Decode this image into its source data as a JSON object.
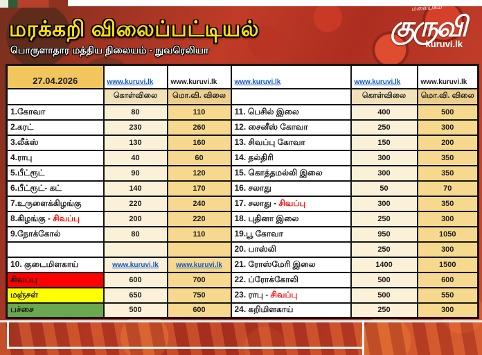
{
  "header": {
    "title": "மரக்கறி விலைப்பட்டியல்",
    "subtitle": "பொருளாதார மத்திய நிலையம் - நுவரெலியா",
    "logo": {
      "tagline": "மலையகம்",
      "name": "குருவி",
      "site": "kuruvi.lk"
    }
  },
  "colors": {
    "title_yellow": "#ffe100",
    "link_blue": "#0f56c8",
    "red_accent": "#ff0000",
    "date_cell_gold": "#f2c65c",
    "buy_column": "#fbf1d9",
    "wholesale_column": "#f6d98e",
    "red_row": "#fe0000",
    "yellow_row": "#ffff00",
    "green_row": "#69a84f",
    "background_red": "#b5311f"
  },
  "table": {
    "date": "27.04.2026",
    "links": [
      {
        "label": "www.kuruvi.lk",
        "style": "blue"
      },
      {
        "label": "www.kuruvi.lk",
        "style": "plain"
      },
      {
        "label": "www.kuruvi.lk",
        "style": "blue"
      },
      {
        "label": "www.kuruvi.lk",
        "style": "blue"
      },
      {
        "label": "www.kuruvi.lk",
        "style": "plain"
      }
    ],
    "col_headers": {
      "buy": "கொள்விலை",
      "wholesale": "மொ.வி. விலை"
    },
    "left_rows": [
      {
        "name": "1.கோவா",
        "buy": "80",
        "sale": "110"
      },
      {
        "name": "2.கரட்",
        "buy": "230",
        "sale": "260"
      },
      {
        "name": "3.லீக்ஸ்",
        "buy": "130",
        "sale": "160"
      },
      {
        "name": "4.ராபு",
        "buy": "40",
        "sale": "60"
      },
      {
        "name": "5.பீட்ரூட்",
        "buy": "90",
        "sale": "120"
      },
      {
        "name": "6.பீட்ரூட்- கட்",
        "buy": "140",
        "sale": "170"
      },
      {
        "name": "7.உருளைக்கிழங்கு",
        "buy": "220",
        "sale": "240"
      },
      {
        "name": "8.கிழங்கு - ",
        "name_red": "சிவப்பு",
        "buy": "200",
        "sale": "220"
      },
      {
        "name": "9.நோக்கோல்",
        "buy": "80",
        "sale": "110"
      },
      {
        "name": "",
        "buy": "",
        "sale": ""
      },
      {
        "name": "10. குடைமிளகாய்",
        "buy": "www.kuruvi.lk",
        "sale": "www.kuruvi.lk",
        "links": true
      },
      {
        "name": "சிவப்பு",
        "bg": "#fe0000",
        "buy": "600",
        "sale": "700"
      },
      {
        "name": "மஞ்சள்",
        "bg": "#ffff00",
        "buy": "650",
        "sale": "750"
      },
      {
        "name": "பச்சை",
        "bg": "#69a84f",
        "buy": "500",
        "sale": "600"
      }
    ],
    "right_rows": [
      {
        "name": "11. பெசில் இலை",
        "buy": "400",
        "sale": "500"
      },
      {
        "name": "12. சைனீஸ் கோவா",
        "buy": "250",
        "sale": "300"
      },
      {
        "name": "13. சிவப்பு கோவா",
        "buy": "150",
        "sale": "200"
      },
      {
        "name": "14. தல்திரி",
        "buy": "300",
        "sale": "350"
      },
      {
        "name": "15. கொத்தமல்லி இலை",
        "buy": "300",
        "sale": "350"
      },
      {
        "name": "16. சலாது",
        "buy": "50",
        "sale": "70"
      },
      {
        "name": "17. சலாது - ",
        "name_red": "சிவப்பு",
        "buy": "300",
        "sale": "350"
      },
      {
        "name": "18. புதினா இலை",
        "buy": "250",
        "sale": "300"
      },
      {
        "name": "19.பூ கோவா",
        "buy": "950",
        "sale": "1050"
      },
      {
        "name": "20. பாஸ்லி",
        "buy": "250",
        "sale": "300"
      },
      {
        "name": "21. ரோஸ்மேரி இலை",
        "buy": "1400",
        "sale": "1500"
      },
      {
        "name": "22. ப்ரோக்கோலி",
        "buy": "500",
        "sale": "600"
      },
      {
        "name": "23. ராபு - ",
        "name_red": "சிவப்பு",
        "buy": "500",
        "sale": "550"
      },
      {
        "name": "24. கறிமிளகாய்",
        "buy": "250",
        "sale": "300"
      }
    ]
  }
}
